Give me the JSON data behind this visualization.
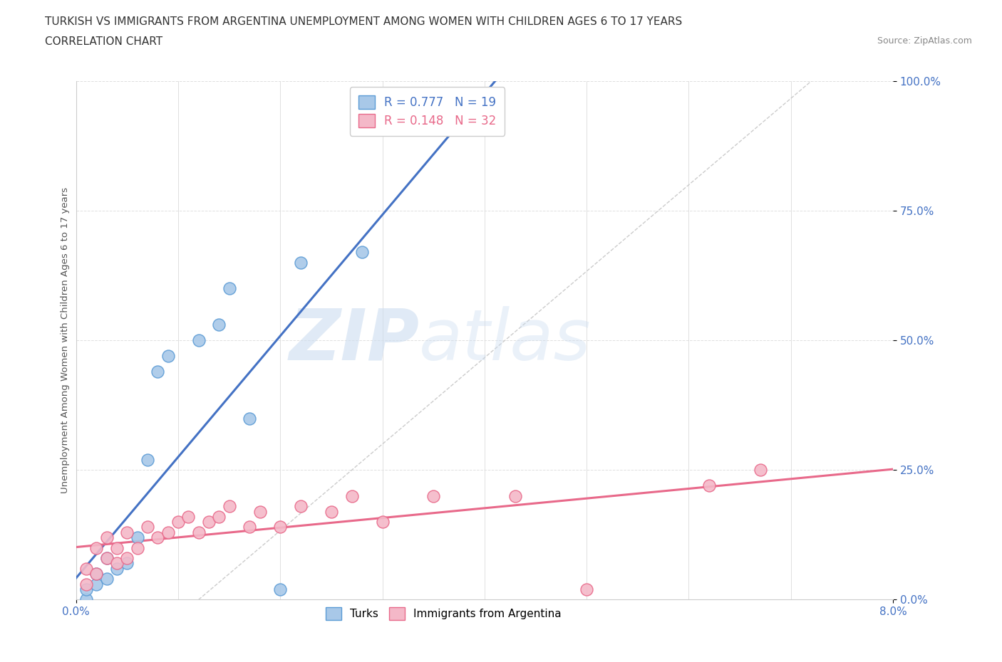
{
  "title_line1": "TURKISH VS IMMIGRANTS FROM ARGENTINA UNEMPLOYMENT AMONG WOMEN WITH CHILDREN AGES 6 TO 17 YEARS",
  "title_line2": "CORRELATION CHART",
  "source": "Source: ZipAtlas.com",
  "ylabel": "Unemployment Among Women with Children Ages 6 to 17 years",
  "xlim": [
    0.0,
    0.08
  ],
  "ylim": [
    0.0,
    1.0
  ],
  "ytick_values": [
    0.0,
    0.25,
    0.5,
    0.75,
    1.0
  ],
  "ytick_labels": [
    "0.0%",
    "25.0%",
    "50.0%",
    "75.0%",
    "100.0%"
  ],
  "xtick_labels": [
    "0.0%",
    "8.0%"
  ],
  "color_turks": "#a8c8e8",
  "color_turks_edge": "#5b9bd5",
  "color_turks_line": "#4472c4",
  "color_argentina": "#f4b8c8",
  "color_argentina_edge": "#e8698a",
  "color_argentina_line": "#e8698a",
  "turks_x": [
    0.001,
    0.001,
    0.002,
    0.002,
    0.003,
    0.003,
    0.004,
    0.005,
    0.006,
    0.007,
    0.008,
    0.009,
    0.012,
    0.014,
    0.015,
    0.017,
    0.02,
    0.022,
    0.028
  ],
  "turks_y": [
    0.0,
    0.02,
    0.03,
    0.05,
    0.04,
    0.08,
    0.06,
    0.07,
    0.12,
    0.27,
    0.44,
    0.47,
    0.5,
    0.53,
    0.6,
    0.35,
    0.02,
    0.65,
    0.67
  ],
  "argentina_x": [
    0.001,
    0.001,
    0.002,
    0.002,
    0.003,
    0.003,
    0.004,
    0.004,
    0.005,
    0.005,
    0.006,
    0.007,
    0.008,
    0.009,
    0.01,
    0.011,
    0.012,
    0.013,
    0.014,
    0.015,
    0.017,
    0.018,
    0.02,
    0.022,
    0.025,
    0.027,
    0.03,
    0.035,
    0.043,
    0.05,
    0.062,
    0.067
  ],
  "argentina_y": [
    0.03,
    0.06,
    0.05,
    0.1,
    0.08,
    0.12,
    0.07,
    0.1,
    0.08,
    0.13,
    0.1,
    0.14,
    0.12,
    0.13,
    0.15,
    0.16,
    0.13,
    0.15,
    0.16,
    0.18,
    0.14,
    0.17,
    0.14,
    0.18,
    0.17,
    0.2,
    0.15,
    0.2,
    0.2,
    0.02,
    0.22,
    0.25
  ],
  "R_turks": 0.777,
  "N_turks": 19,
  "R_argentina": 0.148,
  "N_argentina": 32
}
